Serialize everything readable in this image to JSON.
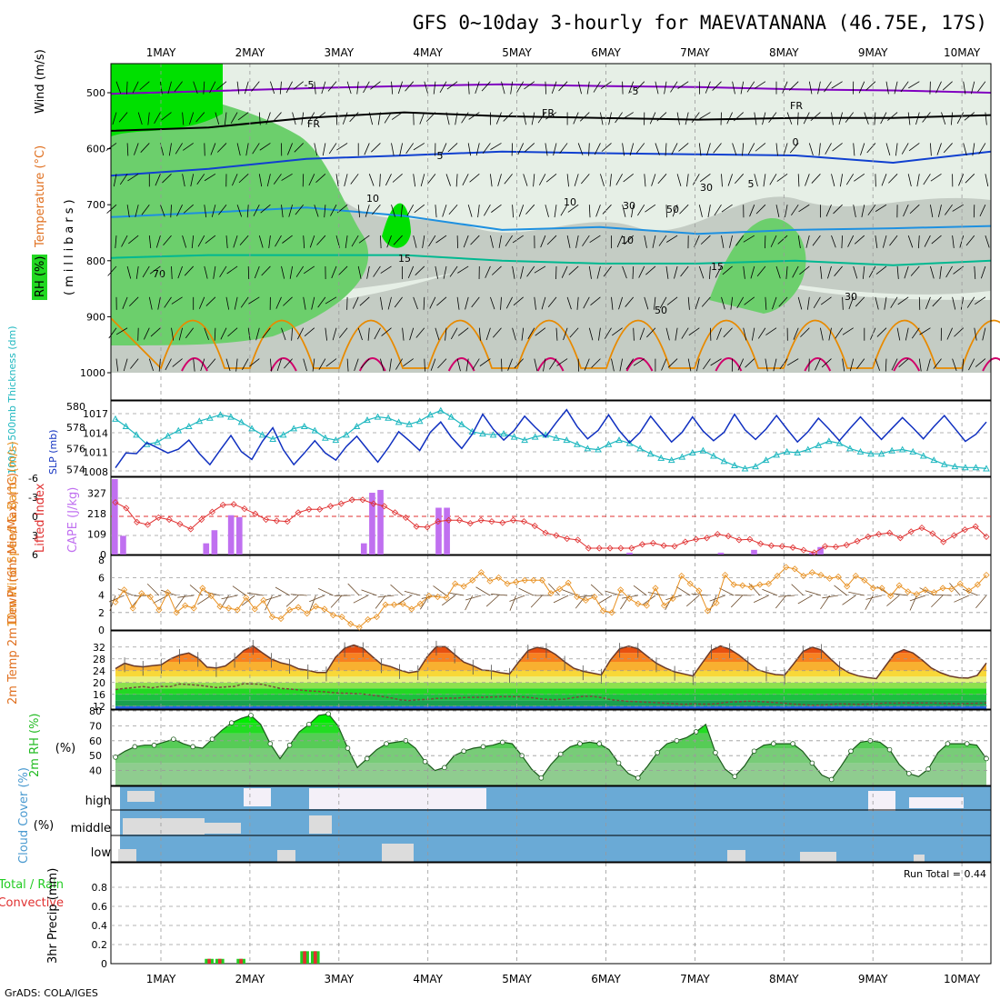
{
  "title": "GFS 0~10day 3-hourly for MAEVATANANA (46.75E, 17S)",
  "footer": "GrADS: COLA/IGES",
  "dates": [
    "1MAY",
    "2MAY",
    "3MAY",
    "4MAY",
    "5MAY",
    "6MAY",
    "7MAY",
    "8MAY",
    "9MAY",
    "10MAY"
  ],
  "colors": {
    "rh_dark": "#00e000",
    "rh_mid": "#6ccf6c",
    "rh_gray": "#c4ccc4",
    "rh_light": "#e6efe6",
    "temp_m5": "#8000c0",
    "temp_fr": "#000000",
    "temp_5": "#1040d0",
    "temp_10": "#1e90e0",
    "temp_15": "#00b890",
    "temp_20": "#e88a00",
    "temp_25": "#d0006a",
    "slp": "#1030c0",
    "thickness": "#20b8c0",
    "lifted_index": "#e03030",
    "cape": "#c070f0",
    "wind_speed": "#e89020",
    "wind_barb": "#6b4a2a",
    "cloud_fill": "#6aaad6",
    "cloud_clear": "#f4f0f8",
    "cloud_light": "#dcdcdc",
    "precip_total": "#22cc22",
    "precip_conv": "#e03030"
  },
  "chart_data": [
    {
      "type": "heatmap",
      "name": "upper-air",
      "ylabel": "(millibars)",
      "legend_labels": [
        "RH (%)",
        "Temperature (°C)",
        "Wind (m/s)"
      ],
      "y_ticks": [
        500,
        600,
        700,
        800,
        900,
        1000
      ],
      "ylim": [
        1000,
        450
      ],
      "contour_labels": [
        "-5",
        "-5",
        "FR",
        "FR",
        "FR",
        "0",
        "5",
        "5",
        "10",
        "10",
        "10",
        "15",
        "15",
        "30",
        "30",
        "30",
        "50",
        "50",
        "70"
      ],
      "temperature_levels_mb": {
        "m5": [
          502,
          497,
          492,
          488,
          485,
          488,
          490,
          494,
          496,
          500
        ],
        "fr": [
          568,
          562,
          545,
          535,
          542,
          545,
          548,
          545,
          545,
          540
        ],
        "t5": [
          648,
          636,
          618,
          612,
          605,
          608,
          610,
          612,
          625,
          605
        ],
        "t10": [
          722,
          714,
          705,
          720,
          745,
          740,
          752,
          745,
          742,
          738
        ],
        "t15": [
          795,
          790,
          790,
          790,
          800,
          805,
          805,
          800,
          808,
          800
        ]
      }
    },
    {
      "type": "line",
      "name": "slp-thickness",
      "ylabel_left": "1000~500mb Thickness (dm)",
      "ylabel_right": "SLP (mb)",
      "y_ticks_left": [
        "580",
        "578",
        "576",
        "574"
      ],
      "y_ticks_right": [
        "1017",
        "1014",
        "1011",
        "1008"
      ],
      "series": [
        {
          "values": [
            1008.6,
            1010.9,
            1010.8,
            1012.5,
            1011.7,
            1010.9,
            1011.5,
            1012.9,
            1010.8,
            1009.1,
            1011.4,
            1013.6,
            1011.1,
            1009.9,
            1012.7,
            1014.8,
            1011.4,
            1009.1,
            1010.9,
            1012.8,
            1010.9,
            1009.8,
            1011.9,
            1013.5,
            1011.5,
            1009.5,
            1011.7,
            1014.2,
            1012.8,
            1011.3,
            1014.1,
            1015.7,
            1013.4,
            1011.6,
            1013.8,
            1016.9,
            1014.6,
            1012.9,
            1014.4,
            1016.6,
            1014.9,
            1013.4,
            1015.6,
            1017.6,
            1015.0,
            1013.1,
            1014.4,
            1016.8,
            1014.4,
            1012.5,
            1014.1,
            1016.6,
            1014.6,
            1012.6,
            1014.1,
            1016.5,
            1014.3,
            1012.8,
            1014.1,
            1016.9,
            1014.5,
            1013.0,
            1014.6,
            1016.7,
            1014.6,
            1012.6,
            1014.2,
            1016.3,
            1014.6,
            1012.8,
            1014.7,
            1016.5,
            1014.7,
            1013.0,
            1014.7,
            1016.4,
            1014.8,
            1013.1,
            1015.0,
            1016.7,
            1014.7,
            1012.7,
            1013.8,
            1015.7
          ]
        },
        {
          "values": [
            578.8,
            578.1,
            577.3,
            576.4,
            576.6,
            577.2,
            577.7,
            578.1,
            578.6,
            578.9,
            579.2,
            579.0,
            578.5,
            577.9,
            577.3,
            576.9,
            577.3,
            577.9,
            578.1,
            577.7,
            577.0,
            576.8,
            577.3,
            578.1,
            578.7,
            579.0,
            578.9,
            578.5,
            578.3,
            578.6,
            579.2,
            579.6,
            579.0,
            578.3,
            577.6,
            577.4,
            577.3,
            577.4,
            577.1,
            576.8,
            577.1,
            577.3,
            577.0,
            576.8,
            576.4,
            576.0,
            575.9,
            576.4,
            576.8,
            576.5,
            576.0,
            575.5,
            575.1,
            574.9,
            575.2,
            575.6,
            575.8,
            575.3,
            574.8,
            574.4,
            574.1,
            574.3,
            574.9,
            575.4,
            575.7,
            575.6,
            575.9,
            576.3,
            576.7,
            576.5,
            576.0,
            575.7,
            575.5,
            575.5,
            575.8,
            575.9,
            575.7,
            575.3,
            574.9,
            574.5,
            574.3,
            574.2,
            574.2,
            574.1
          ]
        }
      ]
    },
    {
      "type": "bar",
      "name": "cape-lifted-index",
      "ylabel_left": "Lifted Index",
      "ylabel_right": "CAPE (J/kg)",
      "y_ticks_left": [
        "-6",
        "-3",
        "0",
        "3",
        "6"
      ],
      "y_ticks_right": [
        "327",
        "218",
        "109",
        "0"
      ],
      "series": [
        {
          "values": [
            420,
            100,
            0,
            0,
            0,
            0,
            0,
            0,
            0,
            0,
            0,
            60,
            130,
            0,
            210,
            200,
            0,
            0,
            0,
            0,
            0,
            0,
            0,
            0,
            0,
            0,
            0,
            0,
            0,
            0,
            60,
            330,
            345,
            0,
            0,
            0,
            0,
            0,
            0,
            250,
            250,
            0,
            0,
            0,
            0,
            0,
            0,
            0,
            0,
            0,
            0,
            0,
            0,
            0,
            0,
            0,
            0,
            0,
            0,
            0,
            0,
            0,
            10,
            0,
            0,
            0,
            0,
            0,
            0,
            0,
            0,
            0,
            0,
            10,
            0,
            0,
            0,
            25,
            0,
            0,
            0,
            0,
            0,
            0,
            10,
            40,
            0,
            0,
            0,
            0,
            0,
            0,
            0,
            0,
            0,
            0,
            0,
            0,
            0,
            0,
            0,
            0,
            0,
            0,
            0,
            0
          ]
        },
        {
          "values": [
            -2.2,
            -1.3,
            0.9,
            1.3,
            0.2,
            0.5,
            1.2,
            2.0,
            0.5,
            -0.7,
            -1.8,
            -1.9,
            -1.2,
            -0.4,
            0.5,
            0.7,
            0.8,
            -0.6,
            -1.1,
            -1.1,
            -1.6,
            -2.0,
            -2.6,
            -2.6,
            -2.0,
            -1.6,
            -0.6,
            0.2,
            1.6,
            1.7,
            0.8,
            0.6,
            0.6,
            1.1,
            0.6,
            0.8,
            1.0,
            0.6,
            0.8,
            1.5,
            2.6,
            3.0,
            3.5,
            3.7,
            5.0,
            5.0,
            5.0,
            5.0,
            5.0,
            4.4,
            4.2,
            4.6,
            4.7,
            4.0,
            3.6,
            3.4,
            2.8,
            3.1,
            3.7,
            3.6,
            4.3,
            4.6,
            4.7,
            4.9,
            5.3,
            5.7,
            4.7,
            4.8,
            4.5,
            3.9,
            3.2,
            2.8,
            2.6,
            3.4,
            2.4,
            1.8,
            2.7,
            4.0,
            3.0,
            2.1,
            1.6,
            3.2
          ]
        }
      ]
    },
    {
      "type": "line",
      "name": "wind-10m",
      "ylabel_left": "10m Wind Speed & Barbs (m/s)",
      "y_ticks": [
        "8",
        "6",
        "4",
        "2",
        "0"
      ],
      "ylim": [
        0,
        8
      ],
      "series": [
        {
          "values": [
            3.2,
            4.6,
            2.5,
            4.2,
            3.8,
            2.3,
            4.3,
            2.0,
            2.8,
            2.5,
            4.8,
            3.9,
            2.7,
            2.5,
            2.3,
            3.7,
            2.4,
            3.4,
            1.5,
            1.3,
            2.3,
            2.6,
            1.9,
            2.7,
            2.4,
            1.7,
            1.5,
            0.7,
            0.3,
            1.2,
            1.5,
            2.9,
            2.9,
            3.0,
            2.4,
            3.0,
            3.9,
            3.8,
            3.7,
            5.3,
            5.0,
            5.7,
            6.6,
            5.6,
            6.0,
            5.3,
            5.5,
            5.7,
            5.7,
            5.7,
            4.2,
            4.7,
            5.4,
            3.8,
            3.4,
            3.8,
            2.2,
            2.0,
            4.6,
            3.6,
            3.0,
            2.8,
            4.8,
            2.8,
            3.6,
            6.2,
            5.3,
            4.5,
            2.2,
            3.1,
            6.3,
            5.2,
            5.1,
            4.9,
            5.2,
            5.3,
            6.2,
            7.2,
            7.0,
            6.2,
            6.6,
            6.3,
            5.9,
            6.1,
            5.0,
            6.2,
            5.7,
            4.8,
            4.8,
            3.9,
            5.1,
            4.4,
            4.1,
            4.6,
            4.3,
            4.8,
            4.7,
            5.3,
            4.5,
            5.2,
            6.3
          ]
        }
      ]
    },
    {
      "type": "area",
      "name": "temp-2m",
      "ylabel_left": "2m Temp 2m DewPt (6hr Min/Max) (°C)",
      "y_ticks": [
        "32",
        "28",
        "24",
        "20",
        "16",
        "12"
      ],
      "ylim": [
        11,
        34
      ],
      "series": [
        {
          "values": [
            24.7,
            26.5,
            25.6,
            25.3,
            25.7,
            26.0,
            28.0,
            29.3,
            30.0,
            28.3,
            25.2,
            24.9,
            25.6,
            28.0,
            30.8,
            32.4,
            30.1,
            28.0,
            26.7,
            26.0,
            24.6,
            24.1,
            23.4,
            23.4,
            28.5,
            31.6,
            32.7,
            31.6,
            28.8,
            26.2,
            25.4,
            24.2,
            23.3,
            23.8,
            28.7,
            32.1,
            32.1,
            29.5,
            26.9,
            25.7,
            24.2,
            24.0,
            23.3,
            22.9,
            27.0,
            30.8,
            31.9,
            31.3,
            29.5,
            27.0,
            24.8,
            23.8,
            23.2,
            22.6,
            27.6,
            31.4,
            32.3,
            31.4,
            28.9,
            26.5,
            24.9,
            23.6,
            22.9,
            22.2,
            26.6,
            30.9,
            32.4,
            31.3,
            29.3,
            26.8,
            24.4,
            23.4,
            22.7,
            22.5,
            26.4,
            30.5,
            32.0,
            31.0,
            28.0,
            25.2,
            23.3,
            22.3,
            21.7,
            21.3,
            25.6,
            29.8,
            31.1,
            30.0,
            27.6,
            24.9,
            23.3,
            22.2,
            21.6,
            21.5,
            22.4,
            26.6
          ]
        },
        {
          "values": [
            17.6,
            18.0,
            18.3,
            18.6,
            18.2,
            18.7,
            18.6,
            19.5,
            19.3,
            19.1,
            18.7,
            18.3,
            18.5,
            18.7,
            19.6,
            19.5,
            19.4,
            18.7,
            18.0,
            17.8,
            17.5,
            17.2,
            17.0,
            16.8,
            16.5,
            16.4,
            16.3,
            16.1,
            15.7,
            15.3,
            14.8,
            14.2,
            13.9,
            14.2,
            14.3,
            14.6,
            14.7,
            14.7,
            14.9,
            15.0,
            15.0,
            15.1,
            15.2,
            15.2,
            15.2,
            15.0,
            14.6,
            14.3,
            14.2,
            14.4,
            14.9,
            15.3,
            15.3,
            14.9,
            14.2,
            13.9,
            13.6,
            13.5,
            13.3,
            13.2,
            13.0,
            12.8,
            12.6,
            12.8,
            12.7,
            12.7,
            13.0,
            13.4,
            13.5,
            13.7,
            13.6,
            13.4,
            13.2,
            13.0,
            12.7,
            12.5,
            12.3,
            12.4,
            12.6,
            12.8,
            12.7,
            12.6,
            12.7,
            12.8,
            13.1,
            13.0,
            13.1,
            13.1,
            13.1,
            13.1,
            13.0,
            12.9,
            12.8,
            12.9,
            13.0,
            13.1
          ]
        }
      ]
    },
    {
      "type": "area",
      "name": "rh-2m",
      "ylabel_left": "2m RH (%)",
      "y_ticks": [
        "80",
        "70",
        "60",
        "50",
        "40"
      ],
      "ylim": [
        30,
        80
      ],
      "series": [
        {
          "values": [
            49,
            53,
            56,
            57,
            57,
            59,
            61,
            58,
            56,
            55,
            61,
            67,
            72,
            75,
            77,
            71,
            58,
            48,
            57,
            66,
            71,
            77,
            78,
            70,
            55,
            42,
            48,
            54,
            58,
            59,
            60,
            55,
            46,
            40,
            42,
            50,
            53,
            55,
            56,
            57,
            59,
            58,
            50,
            41,
            35,
            44,
            51,
            56,
            58,
            59,
            58,
            54,
            45,
            38,
            35,
            43,
            52,
            58,
            60,
            62,
            66,
            71,
            52,
            41,
            36,
            43,
            53,
            57,
            58,
            58,
            58,
            53,
            45,
            37,
            34,
            43,
            53,
            59,
            60,
            59,
            54,
            44,
            38,
            36,
            41,
            52,
            58,
            58,
            58,
            57,
            48
          ]
        }
      ]
    },
    {
      "type": "heatmap",
      "name": "cloud-cover",
      "ylabel_left": "Cloud Cover (%)",
      "row_labels": [
        "high",
        "middle",
        "low"
      ]
    },
    {
      "type": "bar",
      "name": "precip-3hr",
      "ylabel_left": "3hr Precip (mm)",
      "legend_labels": [
        "Total / Rain",
        "Convective"
      ],
      "y_ticks": [
        "0.8",
        "0.6",
        "0.4",
        "0.2",
        "0"
      ],
      "ylim": [
        0,
        1.0
      ],
      "annotation": "Run Total = 0.44",
      "series": [
        {
          "values": [
            0,
            0,
            0,
            0,
            0,
            0,
            0,
            0,
            0.05,
            0.05,
            0,
            0.05,
            0,
            0,
            0,
            0,
            0,
            0.13,
            0.13,
            0,
            0,
            0,
            0,
            0,
            0,
            0,
            0,
            0,
            0,
            0,
            0,
            0,
            0,
            0,
            0,
            0,
            0,
            0,
            0,
            0,
            0,
            0,
            0,
            0,
            0,
            0,
            0,
            0,
            0,
            0,
            0,
            0,
            0,
            0,
            0,
            0,
            0,
            0,
            0,
            0,
            0,
            0,
            0,
            0,
            0,
            0,
            0,
            0,
            0,
            0,
            0,
            0,
            0,
            0,
            0,
            0,
            0,
            0,
            0,
            0,
            0,
            0,
            0
          ]
        }
      ]
    }
  ]
}
